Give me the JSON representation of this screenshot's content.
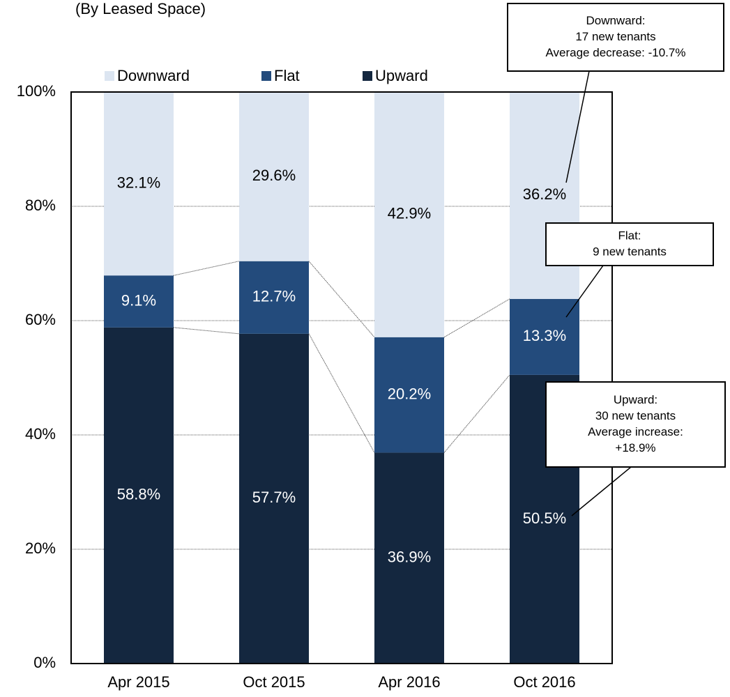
{
  "chart_data": {
    "type": "stacked_bar",
    "subtitle": "(By Leased Space)",
    "categories": [
      "Apr 2015",
      "Oct 2015",
      "Apr 2016",
      "Oct 2016"
    ],
    "series": [
      {
        "name": "Downward",
        "color": "#dce5f1",
        "label_color": "#000000",
        "values": [
          32.1,
          29.6,
          42.9,
          36.2
        ],
        "value_labels": [
          "32.1%",
          "29.6%",
          "42.9%",
          "36.2%"
        ]
      },
      {
        "name": "Flat",
        "color": "#234b7c",
        "label_color": "#ffffff",
        "values": [
          9.1,
          12.7,
          20.2,
          13.3
        ],
        "value_labels": [
          "9.1%",
          "12.7%",
          "20.2%",
          "13.3%"
        ]
      },
      {
        "name": "Upward",
        "color": "#14273f",
        "label_color": "#ffffff",
        "values": [
          58.8,
          57.7,
          36.9,
          50.5
        ],
        "value_labels": [
          "58.8%",
          "57.7%",
          "36.9%",
          "50.5%"
        ]
      }
    ],
    "ylim": [
      0,
      100
    ],
    "yticks": [
      {
        "value": 0,
        "label": "0%"
      },
      {
        "value": 20,
        "label": "20%"
      },
      {
        "value": 40,
        "label": "40%"
      },
      {
        "value": 60,
        "label": "60%"
      },
      {
        "value": 80,
        "label": "80%"
      },
      {
        "value": 100,
        "label": "100%"
      }
    ],
    "grid": true,
    "legend": "top",
    "annotations": [
      [
        "Downward:",
        "17 new tenants",
        "Average decrease: -10.7%"
      ],
      [
        "Flat:",
        "9 new tenants"
      ],
      [
        "Upward:",
        "30 new tenants",
        "Average increase:",
        "+18.9%"
      ]
    ]
  }
}
